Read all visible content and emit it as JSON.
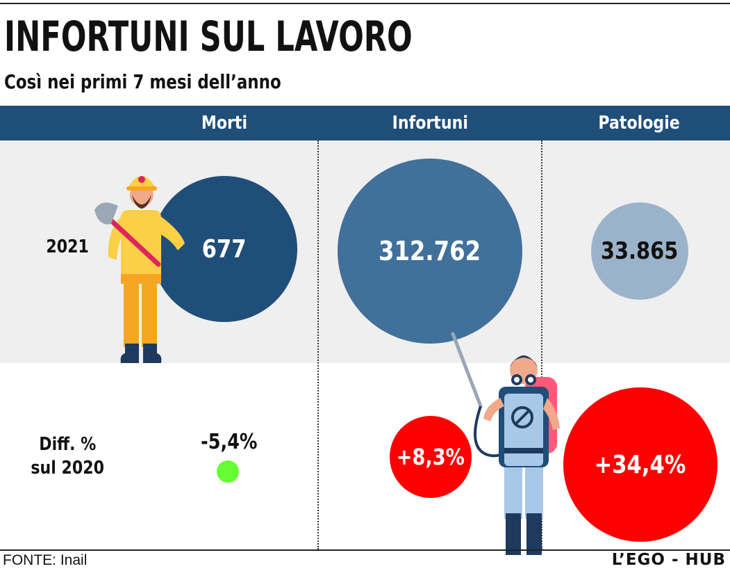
{
  "header": {
    "title": "INFORTUNI SUL LAVORO",
    "subtitle": "Così nei primi 7 mesi dell’anno"
  },
  "columns": [
    "Morti",
    "Infortuni",
    "Patologie"
  ],
  "rows": {
    "year_label": "2021",
    "diff_label_line1": "Diff. %",
    "diff_label_line2": "sul 2020"
  },
  "values_2021": {
    "morti": "677",
    "infortuni": "312.762",
    "patologie": "33.865"
  },
  "diff_2020": {
    "morti": "-5,4%",
    "infortuni": "+8,3%",
    "patologie": "+34,4%"
  },
  "footer": {
    "source": "FONTE: Inail",
    "credit": "L’EGO - HUB"
  },
  "colors": {
    "header_bar": "#1f4e79",
    "circle_dark": "#1f4e79",
    "circle_mid": "#41709b",
    "circle_light": "#9bb3ca",
    "red": "#ff0000",
    "green": "#66ff33",
    "row_bg": "#efefef"
  },
  "chart_data": {
    "type": "table",
    "columns": [
      "Morti",
      "Infortuni",
      "Patologie"
    ],
    "rows": [
      {
        "label": "2021",
        "values": [
          677,
          312762,
          33865
        ]
      },
      {
        "label": "Diff. % sul 2020",
        "values": [
          -5.4,
          8.3,
          34.4
        ]
      }
    ]
  }
}
